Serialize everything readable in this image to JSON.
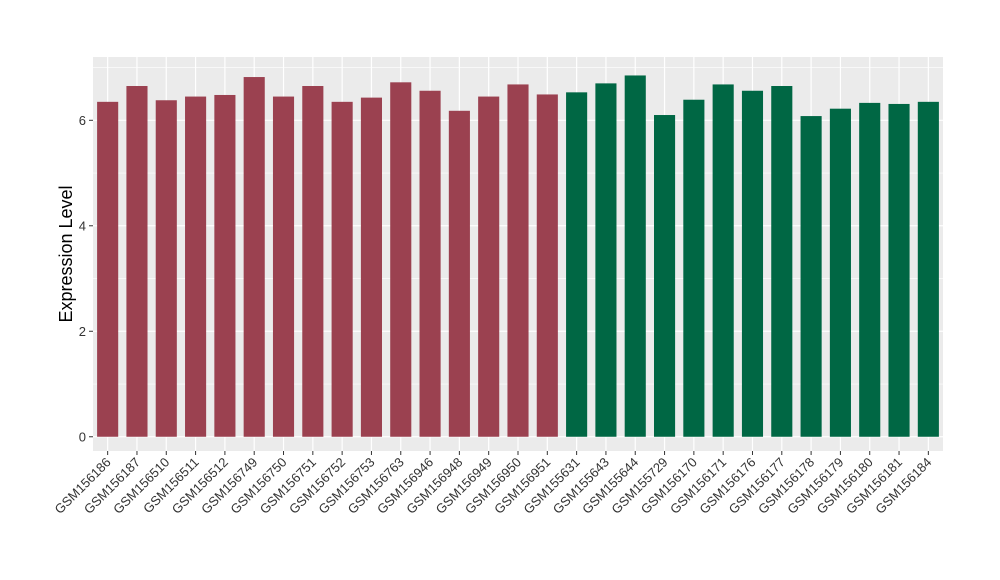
{
  "chart_data": {
    "type": "bar",
    "title": "",
    "xlabel": "",
    "ylabel": "Expression Level",
    "ylim": [
      -0.27,
      7.2
    ],
    "yticks": [
      0,
      2,
      4,
      6
    ],
    "grid": true,
    "legend": "none",
    "colors": {
      "group1": "#9b4150",
      "group2": "#006744",
      "panel": "#ebebeb",
      "gridline": "#ffffff"
    },
    "categories": [
      "GSM156186",
      "GSM156187",
      "GSM156510",
      "GSM156511",
      "GSM156512",
      "GSM156749",
      "GSM156750",
      "GSM156751",
      "GSM156752",
      "GSM156753",
      "GSM156763",
      "GSM156946",
      "GSM156948",
      "GSM156949",
      "GSM156950",
      "GSM156951",
      "GSM155631",
      "GSM155643",
      "GSM155644",
      "GSM155729",
      "GSM156170",
      "GSM156171",
      "GSM156176",
      "GSM156177",
      "GSM156178",
      "GSM156179",
      "GSM156180",
      "GSM156181",
      "GSM156184"
    ],
    "values": [
      6.35,
      6.65,
      6.38,
      6.45,
      6.48,
      6.82,
      6.45,
      6.65,
      6.35,
      6.43,
      6.72,
      6.56,
      6.18,
      6.45,
      6.68,
      6.49,
      6.53,
      6.7,
      6.85,
      6.1,
      6.39,
      6.68,
      6.56,
      6.65,
      6.08,
      6.22,
      6.33,
      6.31,
      6.35
    ],
    "groups": [
      1,
      1,
      1,
      1,
      1,
      1,
      1,
      1,
      1,
      1,
      1,
      1,
      1,
      1,
      1,
      1,
      2,
      2,
      2,
      2,
      2,
      2,
      2,
      2,
      2,
      2,
      2,
      2,
      2
    ]
  }
}
